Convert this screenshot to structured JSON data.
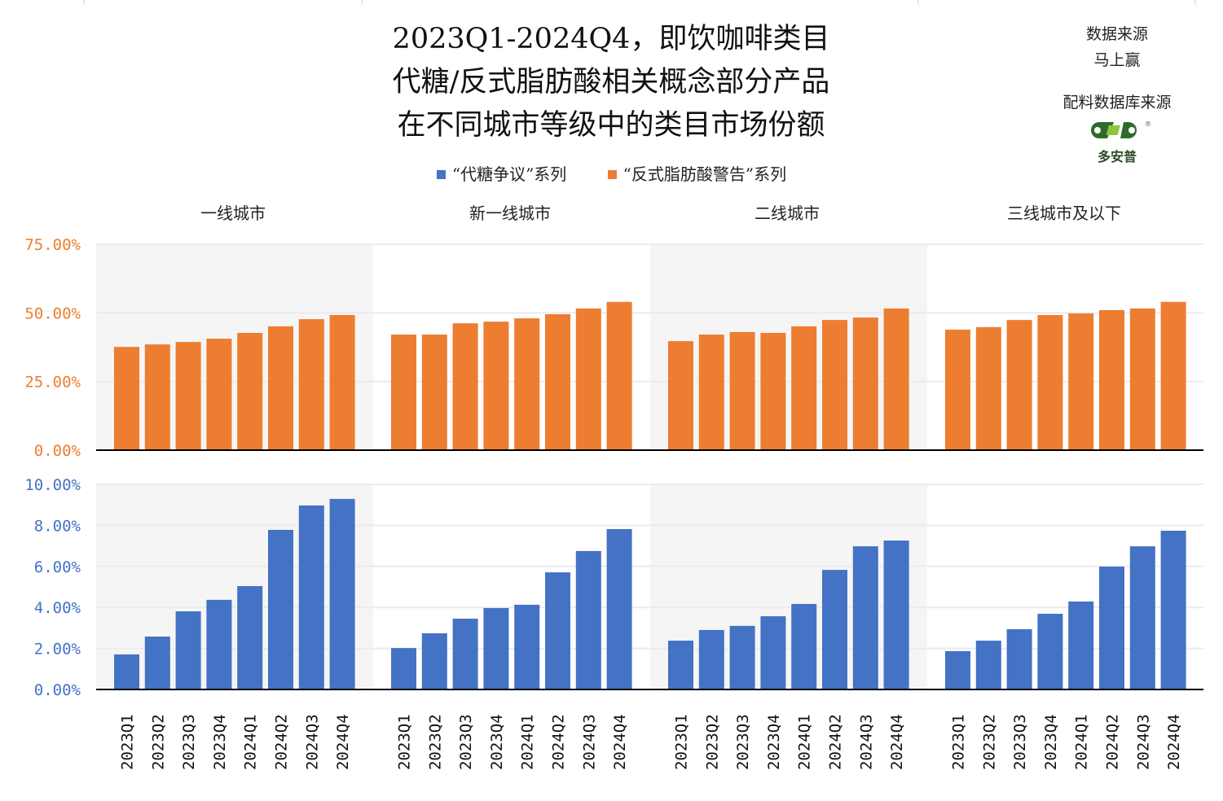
{
  "title": {
    "line1": "2023Q1-2024Q4，即饮咖啡类目",
    "line2": "代糖/反式脂肪酸相关概念部分产品",
    "line3": "在不同城市等级中的类目市场份额"
  },
  "source": {
    "data_label": "数据来源",
    "data_name": "马上赢",
    "db_label": "配料数据库来源",
    "logo_text": "多安普"
  },
  "colors": {
    "blue": "#4472c4",
    "orange": "#ed7d31",
    "panel_gray": "#f5f5f5"
  },
  "chart_data": {
    "type": "bar",
    "x": [
      "2023Q1",
      "2023Q2",
      "2023Q3",
      "2023Q4",
      "2024Q1",
      "2024Q2",
      "2024Q3",
      "2024Q4"
    ],
    "legend": [
      "“代糖争议”系列",
      "“反式脂肪酸警告”系列"
    ],
    "legend_placement": "top-center",
    "panels": [
      "一线城市",
      "新一线城市",
      "二线城市",
      "三线城市及以下"
    ],
    "top": {
      "series_name": "“反式脂肪酸警告”系列",
      "ylim": [
        0,
        75
      ],
      "ticks": [
        "0.00%",
        "25.00%",
        "50.00%",
        "75.00%"
      ],
      "tick_values": [
        0,
        25,
        50,
        75
      ],
      "values": [
        [
          37.6,
          38.5,
          39.4,
          40.6,
          42.7,
          45.1,
          47.7,
          49.2
        ],
        [
          42.1,
          42.1,
          46.2,
          46.8,
          48.0,
          49.5,
          51.6,
          54.0
        ],
        [
          39.7,
          42.1,
          43.0,
          42.7,
          45.1,
          47.4,
          48.3,
          51.6
        ],
        [
          43.9,
          44.8,
          47.4,
          49.2,
          49.8,
          51.0,
          51.6,
          54.0
        ]
      ]
    },
    "bottom": {
      "series_name": "“代糖争议”系列",
      "ylim": [
        0,
        10
      ],
      "ticks": [
        "0.00%",
        "2.00%",
        "4.00%",
        "6.00%",
        "8.00%",
        "10.00%"
      ],
      "tick_values": [
        0,
        2,
        4,
        6,
        8,
        10
      ],
      "values": [
        [
          1.71,
          2.58,
          3.81,
          4.37,
          5.04,
          7.78,
          8.97,
          9.29
        ],
        [
          2.02,
          2.74,
          3.45,
          3.97,
          4.13,
          5.71,
          6.75,
          7.82
        ],
        [
          2.38,
          2.9,
          3.1,
          3.57,
          4.17,
          5.83,
          6.98,
          7.26
        ],
        [
          1.87,
          2.38,
          2.94,
          3.69,
          4.29,
          5.99,
          6.98,
          7.74
        ]
      ]
    },
    "grid": true
  }
}
